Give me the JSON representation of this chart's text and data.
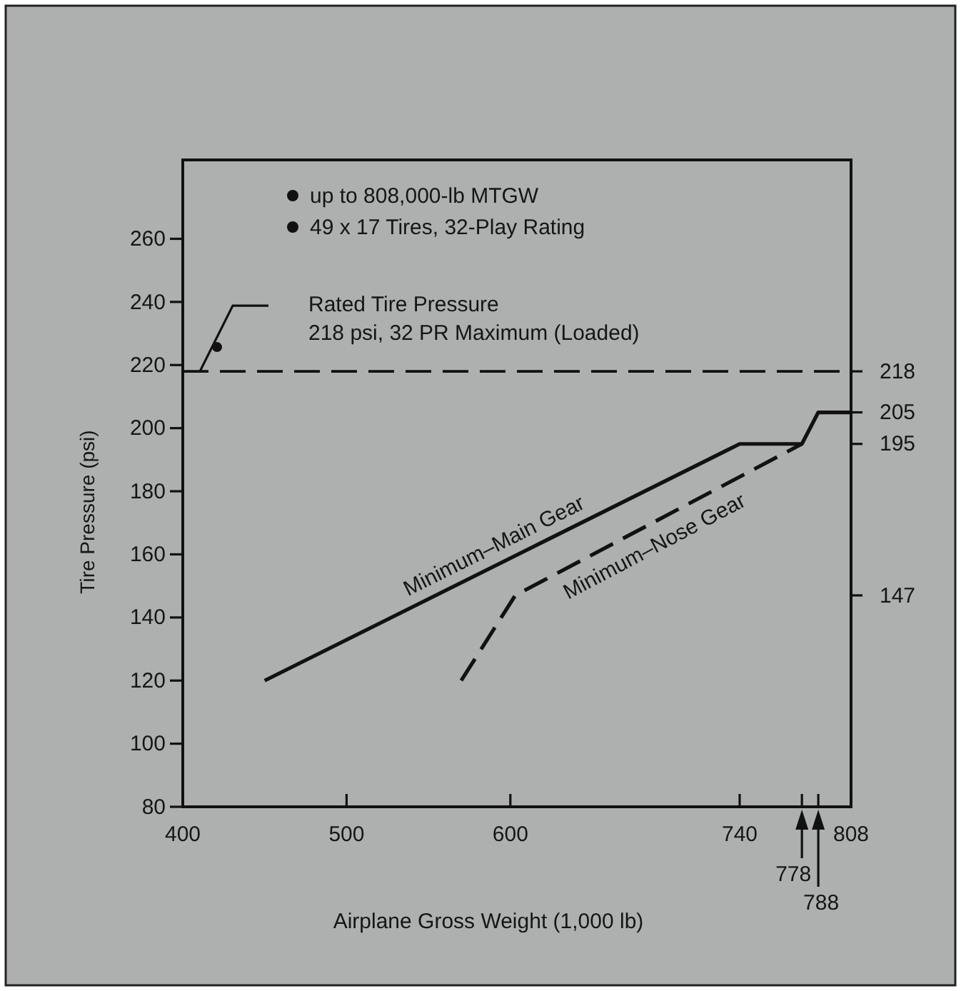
{
  "chart_data": {
    "type": "line",
    "xlabel": "Airplane Gross Weight (1,000 lb)",
    "ylabel": "Tire Pressure (psi)",
    "xlim": [
      400,
      808
    ],
    "xticks": [
      400,
      500,
      600,
      740,
      {
        "value": 778,
        "label": null
      },
      {
        "value": 788,
        "label": null
      },
      808
    ],
    "ylim": [
      80,
      285
    ],
    "yticks": [
      80,
      100,
      120,
      140,
      160,
      180,
      200,
      220,
      240,
      260
    ],
    "y2lim": [
      80,
      285
    ],
    "y2ticks": [
      147,
      195,
      205,
      218
    ],
    "series": [
      {
        "name": "Minimum–Main Gear",
        "color": "#111111",
        "x": [
          450,
          740,
          778,
          788,
          808
        ],
        "values": [
          120,
          195,
          195,
          205,
          205
        ],
        "line_style": "solid"
      },
      {
        "name": "Minimum–Nose Gear",
        "color": "#111111",
        "x": [
          570,
          603,
          778
        ],
        "values": [
          120,
          147,
          195
        ],
        "line_style": "dashed"
      }
    ],
    "ref_lines": [
      {
        "axis": "y",
        "value": 218,
        "label": "Rated Tire Pressure\n218 psi, 32 PR Maximum (Loaded)",
        "line_style": "dashed",
        "color": "#111111"
      }
    ],
    "annotations": [
      "up to 808,000-lb MTGW",
      "49 x 17 Tires, 32-Play Rating",
      "778",
      "788"
    ],
    "grid": false,
    "marker": "none"
  }
}
